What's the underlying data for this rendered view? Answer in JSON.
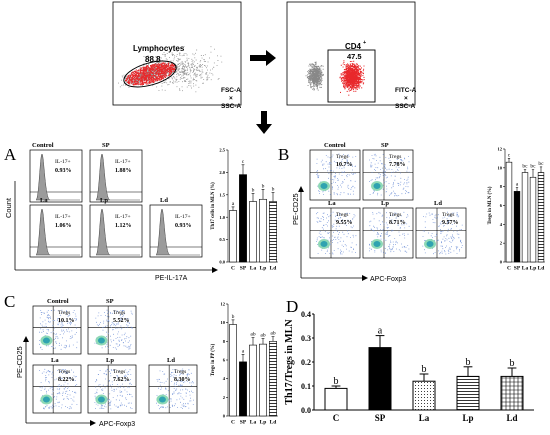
{
  "gating": {
    "lymph_label": "Lymphocytes",
    "lymph_value": "88.8",
    "axis1_a": "FSC-A",
    "axis1_x": "×",
    "axis1_b": "SSC-A",
    "cd4_label": "CD4",
    "cd4_sup": "+",
    "cd4_value": "47.5",
    "axis2_a": "FITC-A",
    "axis2_x": "×",
    "axis2_b": "SSC-A"
  },
  "panelA": {
    "letter": "A",
    "ylabel": "Count",
    "xlabel": "PE-IL-17A",
    "histograms": [
      {
        "name": "Control",
        "label": "IL-17+",
        "value": "0.93%"
      },
      {
        "name": "SP",
        "label": "IL-17+",
        "value": "1.88%"
      },
      {
        "name": "La",
        "label": "IL-17+",
        "value": "1.06%"
      },
      {
        "name": "Lp",
        "label": "IL-17+",
        "value": "1.12%"
      },
      {
        "name": "Ld",
        "label": "IL-17+",
        "value": "0.93%"
      }
    ]
  },
  "panelB": {
    "letter": "B",
    "ylabel": "PE-CD25",
    "xlabel": "APC-Foxp3",
    "plots": [
      {
        "name": "Control",
        "label": "Tregs",
        "value": "10.7%"
      },
      {
        "name": "SP",
        "label": "Tregs",
        "value": "7.78%"
      },
      {
        "name": "La",
        "label": "Tregs",
        "value": "9.55%"
      },
      {
        "name": "Lp",
        "label": "Tregs",
        "value": "8.71%"
      },
      {
        "name": "Ld",
        "label": "Tregs",
        "value": "9.57%"
      }
    ]
  },
  "panelC": {
    "letter": "C",
    "ylabel": "PE-CD25",
    "xlabel": "APC-Foxp3",
    "plots": [
      {
        "name": "Control",
        "label": "Tregs",
        "value": "10.1%"
      },
      {
        "name": "SP",
        "label": "Tregs",
        "value": "5.52%"
      },
      {
        "name": "La",
        "label": "Tregs",
        "value": "8.22%"
      },
      {
        "name": "Lp",
        "label": "Tregs",
        "value": "7.62%"
      },
      {
        "name": "Ld",
        "label": "Tregs",
        "value": "8.30%"
      }
    ]
  },
  "panelD": {
    "letter": "D"
  },
  "colors": {
    "red": "#e8282b",
    "gray": "#888888",
    "blue": "#6e8fd6",
    "cluster": "#2fa3b0"
  },
  "chart_data": [
    {
      "id": "A",
      "type": "bar",
      "categories": [
        "C",
        "SP",
        "La",
        "Lp",
        "Ld"
      ],
      "values": [
        1.15,
        1.95,
        1.35,
        1.4,
        1.35
      ],
      "errors": [
        0.08,
        0.22,
        0.18,
        0.22,
        0.2
      ],
      "letters": [
        "a",
        "c",
        "b",
        "b",
        "b"
      ],
      "ylabel": "Th17 cells in MLN (%)",
      "ylim": [
        0,
        2.5
      ],
      "yticks": [
        "0.0",
        "0.5",
        "1.0",
        "1.5",
        "2.0",
        "2.5"
      ],
      "fills": [
        "white",
        "black",
        "white",
        "white",
        "hatch-h"
      ]
    },
    {
      "id": "B",
      "type": "bar",
      "categories": [
        "C",
        "SP",
        "La",
        "Lp",
        "Ld"
      ],
      "values": [
        10.6,
        7.5,
        9.5,
        9.0,
        9.5
      ],
      "errors": [
        0.4,
        0.4,
        0.3,
        0.8,
        0.6
      ],
      "letters": [
        "c",
        "a",
        "bc",
        "bc",
        "bc"
      ],
      "ylabel": "Tregs in MLN (%)",
      "ylim": [
        0,
        12
      ],
      "yticks": [
        "0",
        "2",
        "4",
        "6",
        "8",
        "10",
        "12"
      ],
      "fills": [
        "white",
        "black",
        "white",
        "white",
        "hatch-h"
      ]
    },
    {
      "id": "C",
      "type": "bar",
      "categories": [
        "C",
        "SP",
        "La",
        "Lp",
        "Ld"
      ],
      "values": [
        9.8,
        5.8,
        7.6,
        7.7,
        8.0
      ],
      "errors": [
        0.5,
        0.8,
        0.8,
        0.6,
        0.5
      ],
      "letters": [
        "b",
        "a",
        "ab",
        "ab",
        "ab"
      ],
      "ylabel": "Tregs in PP (%)",
      "ylim": [
        0,
        12
      ],
      "yticks": [
        "0",
        "2",
        "4",
        "6",
        "8",
        "10",
        "12"
      ],
      "fills": [
        "white",
        "black",
        "white",
        "white",
        "hatch-h"
      ]
    },
    {
      "id": "D",
      "type": "bar",
      "categories": [
        "C",
        "SP",
        "La",
        "Lp",
        "Ld"
      ],
      "values": [
        0.09,
        0.26,
        0.12,
        0.14,
        0.14
      ],
      "errors": [
        0.01,
        0.05,
        0.03,
        0.04,
        0.035
      ],
      "letters": [
        "b",
        "a",
        "b",
        "b",
        "b"
      ],
      "ylabel": "Th17/Tregs in MLN",
      "ylim": [
        0,
        0.4
      ],
      "yticks": [
        "0.0",
        "0.1",
        "0.2",
        "0.3",
        "0.4"
      ],
      "fills": [
        "white",
        "black",
        "dots",
        "hatch-h",
        "grid"
      ]
    }
  ]
}
